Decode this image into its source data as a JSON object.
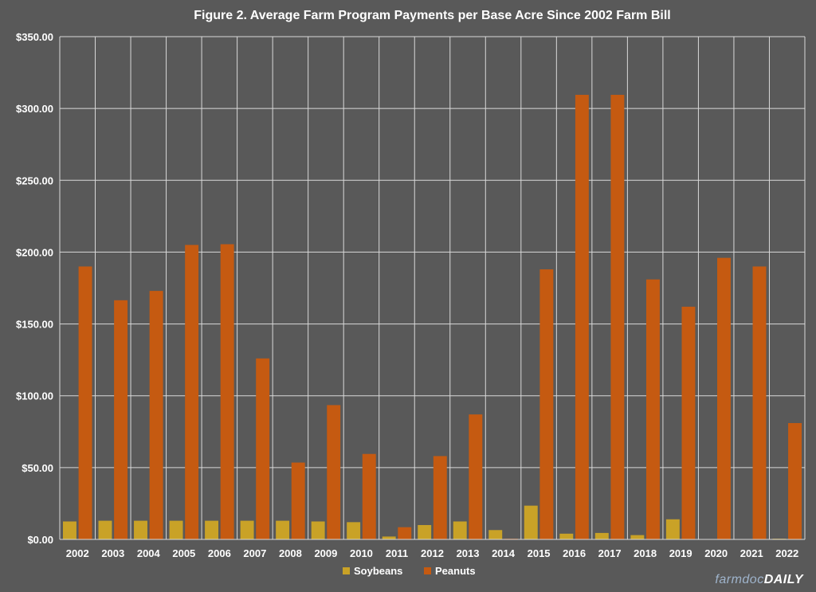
{
  "chart_data": {
    "type": "bar",
    "title": "Figure 2. Average Farm Program Payments per Base Acre Since 2002 Farm Bill",
    "xlabel": "",
    "ylabel": "",
    "ylim": [
      0,
      350
    ],
    "y_ticks": [
      "$0.00",
      "$50.00",
      "$100.00",
      "$150.00",
      "$200.00",
      "$250.00",
      "$300.00",
      "$350.00"
    ],
    "grid": true,
    "legend_position": "bottom",
    "categories": [
      "2002",
      "2003",
      "2004",
      "2005",
      "2006",
      "2007",
      "2008",
      "2009",
      "2010",
      "2011",
      "2012",
      "2013",
      "2014",
      "2015",
      "2016",
      "2017",
      "2018",
      "2019",
      "2020",
      "2021",
      "2022"
    ],
    "series": [
      {
        "name": "Soybeans",
        "color": "#c9a227",
        "values": [
          12.5,
          13,
          13,
          13,
          13,
          13,
          13,
          12.5,
          12,
          2,
          10,
          12.5,
          6.5,
          23.5,
          4,
          4.5,
          3,
          14,
          0,
          0,
          0.5
        ]
      },
      {
        "name": "Peanuts",
        "color": "#c55a11",
        "values": [
          190,
          166.5,
          173,
          205,
          205.5,
          126,
          53.5,
          93.5,
          59.5,
          8.5,
          58,
          87,
          0.5,
          188,
          309.5,
          309.5,
          181,
          162,
          196,
          190,
          81
        ]
      }
    ]
  },
  "branding": {
    "part1": "farmdoc",
    "part2": "DAILY"
  }
}
